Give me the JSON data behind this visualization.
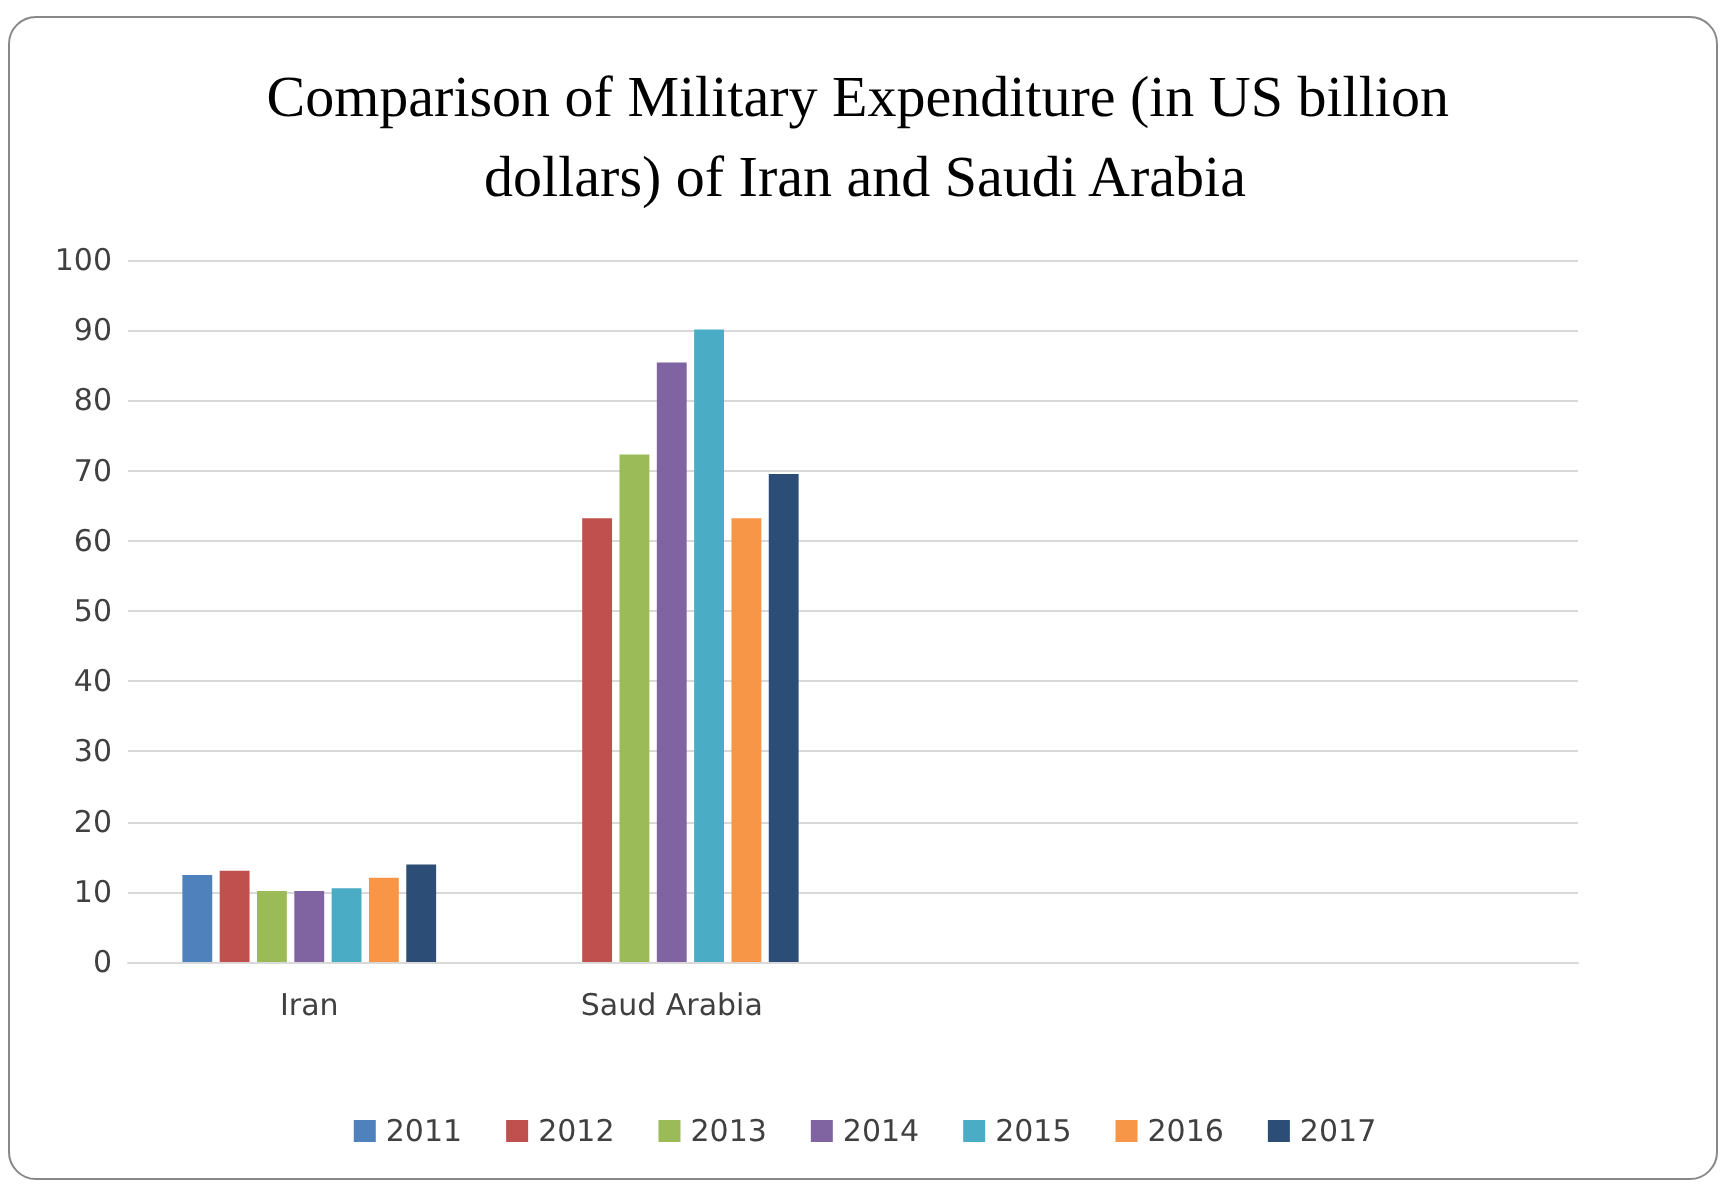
{
  "chart_data": {
    "type": "bar",
    "title": "Comparison of Military Expenditure (in US billion dollars) of Iran and Saudi Arabia",
    "categories": [
      "Iran",
      "Saud Arabia",
      null,
      null
    ],
    "series": [
      {
        "name": "2011",
        "color": "#4f81bd",
        "values": [
          12.4,
          null,
          null,
          null
        ]
      },
      {
        "name": "2012",
        "color": "#c0504d",
        "values": [
          13.0,
          63.2,
          null,
          null
        ]
      },
      {
        "name": "2013",
        "color": "#9bbb59",
        "values": [
          10.1,
          72.3,
          null,
          null
        ]
      },
      {
        "name": "2014",
        "color": "#8064a2",
        "values": [
          10.1,
          85.4,
          null,
          null
        ]
      },
      {
        "name": "2015",
        "color": "#4bacc6",
        "values": [
          10.5,
          90.1,
          null,
          null
        ]
      },
      {
        "name": "2016",
        "color": "#f79646",
        "values": [
          12.0,
          63.2,
          null,
          null
        ]
      },
      {
        "name": "2017",
        "color": "#2c4d75",
        "values": [
          13.9,
          69.5,
          null,
          null
        ]
      }
    ],
    "ylim": [
      0,
      100
    ],
    "yticks": [
      0,
      10,
      20,
      30,
      40,
      50,
      60,
      70,
      80,
      90,
      100
    ],
    "grid": "y",
    "legend": "bottom"
  }
}
